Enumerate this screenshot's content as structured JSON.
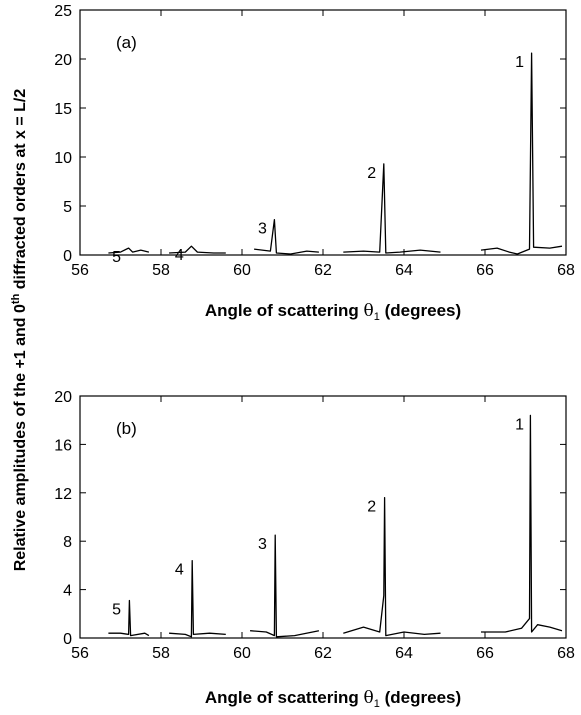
{
  "chart_data": [
    {
      "type": "line",
      "panel_label": "(a)",
      "xlabel_main": "Angle of scattering ",
      "xlabel_symbol": "θ",
      "xlabel_sub": "1",
      "xlabel_tail": " (degrees)",
      "xlim": [
        56,
        68
      ],
      "ylim": [
        0,
        25
      ],
      "xticks": [
        "56",
        "58",
        "60",
        "62",
        "64",
        "66",
        "68"
      ],
      "yticks": [
        "0",
        "5",
        "10",
        "15",
        "20",
        "25"
      ],
      "peaks": [
        {
          "label": "1",
          "x": 67.15,
          "y": 20.6
        },
        {
          "label": "2",
          "x": 63.5,
          "y": 9.3
        },
        {
          "label": "3",
          "x": 60.8,
          "y": 3.6
        },
        {
          "label": "4",
          "x": 58.75,
          "y": 0.9
        },
        {
          "label": "5",
          "x": 57.2,
          "y": 0.7
        }
      ],
      "segments": [
        [
          [
            56.7,
            0.2
          ],
          [
            57.0,
            0.3
          ],
          [
            57.2,
            0.7
          ],
          [
            57.3,
            0.3
          ],
          [
            57.5,
            0.5
          ],
          [
            57.7,
            0.3
          ]
        ],
        [
          [
            58.2,
            0.2
          ],
          [
            58.6,
            0.3
          ],
          [
            58.75,
            0.9
          ],
          [
            58.9,
            0.3
          ],
          [
            59.3,
            0.2
          ],
          [
            59.6,
            0.2
          ]
        ],
        [
          [
            60.3,
            0.6
          ],
          [
            60.7,
            0.4
          ],
          [
            60.8,
            3.6
          ],
          [
            60.85,
            0.2
          ],
          [
            61.2,
            0.1
          ],
          [
            61.6,
            0.4
          ],
          [
            61.9,
            0.3
          ]
        ],
        [
          [
            62.5,
            0.3
          ],
          [
            63.0,
            0.4
          ],
          [
            63.4,
            0.3
          ],
          [
            63.5,
            9.3
          ],
          [
            63.55,
            0.2
          ],
          [
            63.9,
            0.3
          ],
          [
            64.4,
            0.5
          ],
          [
            64.9,
            0.3
          ]
        ],
        [
          [
            65.9,
            0.5
          ],
          [
            66.3,
            0.7
          ],
          [
            66.6,
            0.3
          ],
          [
            66.8,
            0.1
          ],
          [
            67.1,
            0.6
          ],
          [
            67.15,
            20.6
          ],
          [
            67.2,
            0.8
          ],
          [
            67.6,
            0.7
          ],
          [
            67.9,
            0.9
          ]
        ]
      ]
    },
    {
      "type": "line",
      "panel_label": "(b)",
      "xlabel_main": "Angle of scattering ",
      "xlabel_symbol": "θ",
      "xlabel_sub": "1",
      "xlabel_tail": " (degrees)",
      "xlim": [
        56,
        68
      ],
      "ylim": [
        0,
        20
      ],
      "xticks": [
        "56",
        "58",
        "60",
        "62",
        "64",
        "66",
        "68"
      ],
      "yticks": [
        "0",
        "4",
        "8",
        "12",
        "16",
        "20"
      ],
      "peaks": [
        {
          "label": "1",
          "x": 67.15,
          "y": 18.4
        },
        {
          "label": "2",
          "x": 63.5,
          "y": 11.6
        },
        {
          "label": "3",
          "x": 60.8,
          "y": 8.5
        },
        {
          "label": "4",
          "x": 58.75,
          "y": 6.4
        },
        {
          "label": "5",
          "x": 57.2,
          "y": 3.1
        }
      ],
      "segments": [
        [
          [
            56.7,
            0.4
          ],
          [
            57.0,
            0.4
          ],
          [
            57.2,
            0.3
          ],
          [
            57.22,
            3.1
          ],
          [
            57.25,
            0.2
          ],
          [
            57.6,
            0.4
          ],
          [
            57.7,
            0.2
          ]
        ],
        [
          [
            58.2,
            0.4
          ],
          [
            58.6,
            0.3
          ],
          [
            58.75,
            0.1
          ],
          [
            58.77,
            6.4
          ],
          [
            58.8,
            0.3
          ],
          [
            59.2,
            0.4
          ],
          [
            59.6,
            0.3
          ]
        ],
        [
          [
            60.2,
            0.6
          ],
          [
            60.6,
            0.5
          ],
          [
            60.8,
            0.2
          ],
          [
            60.82,
            8.5
          ],
          [
            60.85,
            0.1
          ],
          [
            61.3,
            0.2
          ],
          [
            61.9,
            0.6
          ]
        ],
        [
          [
            62.5,
            0.4
          ],
          [
            63.0,
            0.9
          ],
          [
            63.4,
            0.5
          ],
          [
            63.5,
            3.5
          ],
          [
            63.52,
            11.6
          ],
          [
            63.55,
            0.2
          ],
          [
            64.0,
            0.5
          ],
          [
            64.5,
            0.3
          ],
          [
            64.9,
            0.4
          ]
        ],
        [
          [
            65.9,
            0.5
          ],
          [
            66.5,
            0.5
          ],
          [
            66.9,
            0.8
          ],
          [
            67.1,
            1.6
          ],
          [
            67.12,
            18.4
          ],
          [
            67.15,
            0.5
          ],
          [
            67.3,
            1.1
          ],
          [
            67.6,
            0.9
          ],
          [
            67.9,
            0.6
          ]
        ]
      ]
    }
  ],
  "ylabel_text": "Relative amplitudes of the +1 and 0",
  "ylabel_sup": "th",
  "ylabel_tail": " diffracted orders at x = L/2"
}
